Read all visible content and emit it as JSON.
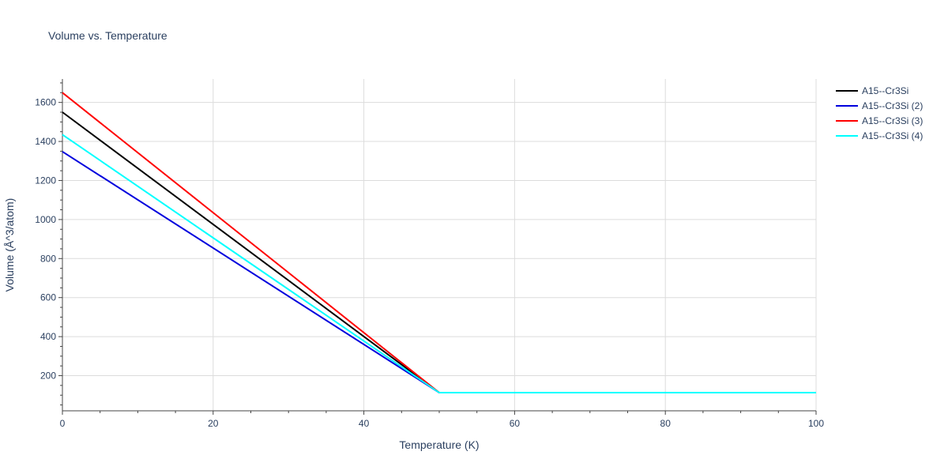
{
  "chart_data": {
    "type": "line",
    "title": "Volume vs. Temperature",
    "xlabel": "Temperature (K)",
    "ylabel": "Volume (Å^3/atom)",
    "xlim": [
      0,
      100
    ],
    "ylim": [
      20,
      1720
    ],
    "xticks": [
      0,
      20,
      40,
      60,
      80,
      100
    ],
    "yticks": [
      200,
      400,
      600,
      800,
      1000,
      1200,
      1400,
      1600
    ],
    "grid": true,
    "legend_position": "top-right",
    "series": [
      {
        "name": "A15--Cr3Si",
        "color": "#000000",
        "x": [
          0,
          50,
          100
        ],
        "y": [
          1550,
          113,
          113
        ]
      },
      {
        "name": "A15--Cr3Si (2)",
        "color": "#0000dd",
        "x": [
          0,
          50,
          100
        ],
        "y": [
          1348,
          113,
          113
        ]
      },
      {
        "name": "A15--Cr3Si (3)",
        "color": "#ff0000",
        "x": [
          0,
          50,
          100
        ],
        "y": [
          1650,
          113,
          113
        ]
      },
      {
        "name": "A15--Cr3Si (4)",
        "color": "#00ffff",
        "x": [
          0,
          50,
          100
        ],
        "y": [
          1435,
          113,
          113
        ]
      }
    ]
  }
}
